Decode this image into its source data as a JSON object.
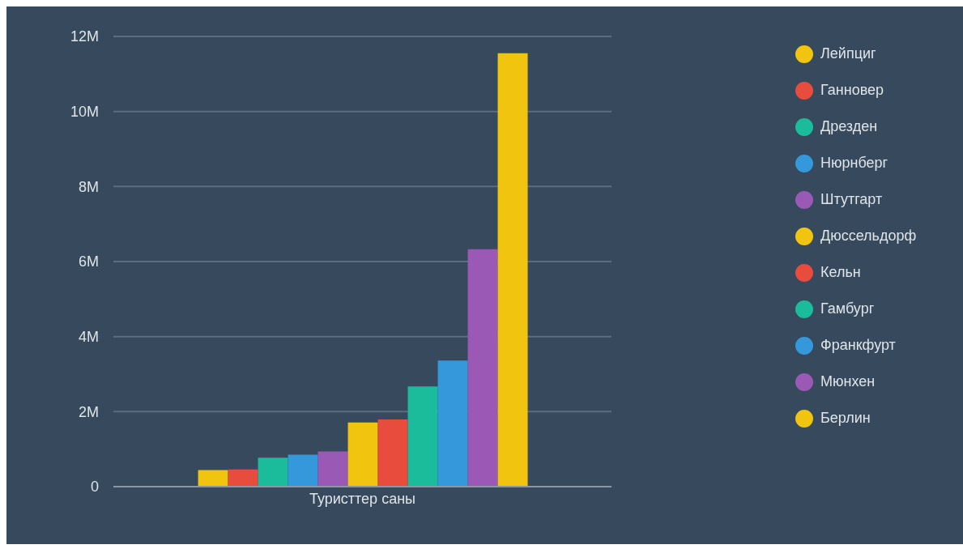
{
  "chart_data": {
    "type": "bar",
    "categories": [
      "Туристтер саны"
    ],
    "series": [
      {
        "name": "Лейпциг",
        "color": "#f1c40f",
        "values": [
          440000
        ]
      },
      {
        "name": "Ганновер",
        "color": "#e74c3c",
        "values": [
          460000
        ]
      },
      {
        "name": "Дрезден",
        "color": "#1abc9c",
        "values": [
          770000
        ]
      },
      {
        "name": "Нюрнберг",
        "color": "#3498db",
        "values": [
          850000
        ]
      },
      {
        "name": "Штутгарт",
        "color": "#9b59b6",
        "values": [
          940000
        ]
      },
      {
        "name": "Дюссельдорф",
        "color": "#f1c40f",
        "values": [
          1710000
        ]
      },
      {
        "name": "Кельн",
        "color": "#e74c3c",
        "values": [
          1790000
        ]
      },
      {
        "name": "Гамбург",
        "color": "#1abc9c",
        "values": [
          2670000
        ]
      },
      {
        "name": "Франкфурт",
        "color": "#3498db",
        "values": [
          3360000
        ]
      },
      {
        "name": "Мюнхен",
        "color": "#9b59b6",
        "values": [
          6330000
        ]
      },
      {
        "name": "Берлин",
        "color": "#f1c40f",
        "values": [
          11550000
        ]
      }
    ],
    "ylim": [
      0,
      12000000
    ],
    "yticks": [
      {
        "value": 0,
        "label": "0"
      },
      {
        "value": 2000000,
        "label": "2M"
      },
      {
        "value": 4000000,
        "label": "4M"
      },
      {
        "value": 6000000,
        "label": "6M"
      },
      {
        "value": 8000000,
        "label": "8M"
      },
      {
        "value": 10000000,
        "label": "10M"
      },
      {
        "value": 12000000,
        "label": "12M"
      }
    ],
    "grid": "y",
    "legend": "right"
  }
}
